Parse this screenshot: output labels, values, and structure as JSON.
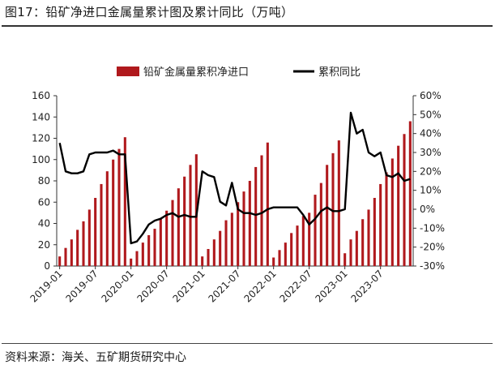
{
  "title": "图17：铅矿净进口金属量累计图及累计同比（万吨）",
  "source": "资料来源：海关、五矿期货研究中心",
  "colors": {
    "bar": "#b0191d",
    "line": "#000000"
  },
  "chart_data": {
    "type": "bar",
    "title": "",
    "legend_position": "top",
    "grid": false,
    "x_tick_labels": [
      "2019-01",
      "2019-07",
      "2020-01",
      "2020-07",
      "2021-01",
      "2021-07",
      "2022-01",
      "2022-07",
      "2023-01",
      "2023-07"
    ],
    "y_left": {
      "min": 0,
      "max": 160,
      "ticks": [
        "0",
        "20",
        "40",
        "60",
        "80",
        "100",
        "120",
        "140",
        "160"
      ]
    },
    "y_right": {
      "min": -30,
      "max": 60,
      "ticks": [
        "-30%",
        "-20%",
        "-10%",
        "0%",
        "10%",
        "20%",
        "30%",
        "40%",
        "50%",
        "60%"
      ]
    },
    "categories": [
      "2019-01",
      "2019-02",
      "2019-03",
      "2019-04",
      "2019-05",
      "2019-06",
      "2019-07",
      "2019-08",
      "2019-09",
      "2019-10",
      "2019-11",
      "2019-12",
      "2020-01",
      "2020-02",
      "2020-03",
      "2020-04",
      "2020-05",
      "2020-06",
      "2020-07",
      "2020-08",
      "2020-09",
      "2020-10",
      "2020-11",
      "2020-12",
      "2021-01",
      "2021-02",
      "2021-03",
      "2021-04",
      "2021-05",
      "2021-06",
      "2021-07",
      "2021-08",
      "2021-09",
      "2021-10",
      "2021-11",
      "2021-12",
      "2022-01",
      "2022-02",
      "2022-03",
      "2022-04",
      "2022-05",
      "2022-06",
      "2022-07",
      "2022-08",
      "2022-09",
      "2022-10",
      "2022-11",
      "2022-12",
      "2023-01",
      "2023-02",
      "2023-03",
      "2023-04",
      "2023-05",
      "2023-06",
      "2023-07",
      "2023-08",
      "2023-09",
      "2023-10",
      "2023-11",
      "2023-12"
    ],
    "series": [
      {
        "name": "铅矿金属量累积净进口",
        "type": "bar",
        "axis": "left",
        "values": [
          9,
          17,
          25,
          34,
          42,
          53,
          64,
          77,
          89,
          100,
          110,
          121,
          7,
          14,
          22,
          29,
          35,
          45,
          52,
          62,
          73,
          84,
          95,
          105,
          9,
          16,
          25,
          33,
          43,
          50,
          60,
          70,
          80,
          93,
          104,
          116,
          8,
          15,
          22,
          31,
          38,
          47,
          50,
          67,
          78,
          95,
          106,
          118,
          12,
          25,
          33,
          44,
          53,
          64,
          77,
          88,
          101,
          113,
          124,
          136
        ]
      },
      {
        "name": "累积同比",
        "type": "line",
        "axis": "right",
        "values": [
          35,
          20,
          19,
          19,
          20,
          29,
          30,
          30,
          30,
          31,
          29,
          29,
          -18,
          -17,
          -13,
          -8,
          -6,
          -5,
          -3,
          -2,
          -4,
          -3,
          -4,
          -4,
          20,
          18,
          17,
          4,
          2,
          14,
          0,
          -2,
          -2,
          -3,
          -2,
          0,
          1,
          1,
          1,
          1,
          1,
          -3,
          -8,
          -5,
          -1,
          1,
          -1,
          -1,
          0,
          51,
          40,
          42,
          30,
          28,
          30,
          18,
          17,
          19,
          15,
          16
        ]
      }
    ]
  }
}
